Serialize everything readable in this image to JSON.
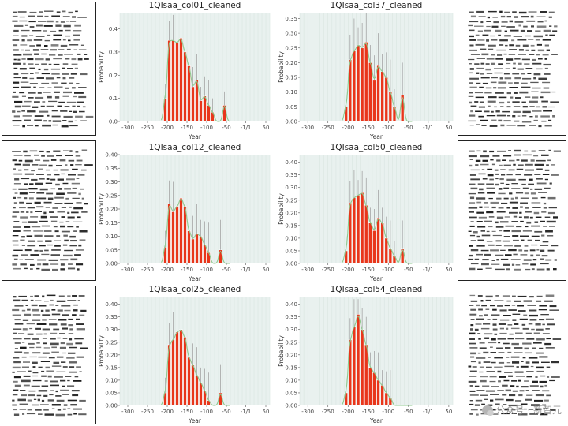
{
  "watermark": {
    "text": "公众号 · 新智元",
    "icon": "wechat-icon"
  },
  "colors": {
    "bar": "#e8361b",
    "bar_edge": "#ffffff",
    "kde": "#8fc98f",
    "plot_bg": "#e9f1ef",
    "errbar": "#9a9a9a"
  },
  "thumbnails": [
    {
      "name": "manuscript-col01"
    },
    {
      "name": "manuscript-col12"
    },
    {
      "name": "manuscript-col25"
    },
    {
      "name": "manuscript-col37"
    },
    {
      "name": "manuscript-col50"
    },
    {
      "name": "manuscript-col54"
    }
  ],
  "chart_data": [
    {
      "type": "bar",
      "title": "1QIsaa_col01_cleaned",
      "xlabel": "Year",
      "ylabel": "Probability",
      "xlim": [
        -320,
        60
      ],
      "ylim": [
        0,
        0.47
      ],
      "yticks": [
        0.0,
        0.1,
        0.2,
        0.3,
        0.4
      ],
      "xticks": [
        -300,
        -250,
        -200,
        -150,
        -100,
        -50,
        -1,
        50
      ],
      "xticklabels": [
        "-300",
        "-250",
        "-200",
        "-150",
        "-100",
        "-50",
        "-1/1",
        "50"
      ],
      "x": [
        -205,
        -195,
        -185,
        -175,
        -165,
        -155,
        -145,
        -135,
        -125,
        -115,
        -105,
        -95,
        -85,
        -75,
        -65,
        -55
      ],
      "values": [
        0.1,
        0.35,
        0.35,
        0.34,
        0.36,
        0.3,
        0.24,
        0.15,
        0.18,
        0.09,
        0.11,
        0.07,
        0.04,
        0,
        0,
        0.07
      ]
    },
    {
      "type": "bar",
      "title": "1QIsaa_col12_cleaned",
      "xlabel": "Year",
      "ylabel": "Probability",
      "xlim": [
        -320,
        60
      ],
      "ylim": [
        0,
        0.4
      ],
      "yticks": [
        0.0,
        0.05,
        0.1,
        0.15,
        0.2,
        0.25,
        0.3,
        0.35,
        0.4
      ],
      "xticks": [
        -300,
        -250,
        -200,
        -150,
        -100,
        -50,
        -1,
        50
      ],
      "xticklabels": [
        "-300",
        "-250",
        "-200",
        "-150",
        "-100",
        "-50",
        "-1/1",
        "50"
      ],
      "x": [
        -205,
        -195,
        -185,
        -175,
        -165,
        -155,
        -145,
        -135,
        -125,
        -115,
        -105,
        -95,
        -85,
        -75,
        -65,
        -55
      ],
      "values": [
        0.06,
        0.22,
        0.19,
        0.21,
        0.24,
        0.21,
        0.12,
        0.09,
        0.11,
        0.1,
        0.07,
        0.04,
        0,
        0,
        0.05,
        0
      ]
    },
    {
      "type": "bar",
      "title": "1QIsaa_col25_cleaned",
      "xlabel": "Year",
      "ylabel": "Probability",
      "xlim": [
        -320,
        60
      ],
      "ylim": [
        0,
        0.43
      ],
      "yticks": [
        0.0,
        0.05,
        0.1,
        0.15,
        0.2,
        0.25,
        0.3,
        0.35,
        0.4
      ],
      "xticks": [
        -300,
        -250,
        -200,
        -150,
        -100,
        -50,
        -1,
        50
      ],
      "xticklabels": [
        "-300",
        "-250",
        "-200",
        "-150",
        "-100",
        "-50",
        "-1/1",
        "50"
      ],
      "x": [
        -205,
        -195,
        -185,
        -175,
        -165,
        -155,
        -145,
        -135,
        -125,
        -115,
        -105,
        -95,
        -85,
        -75,
        -65,
        -55
      ],
      "values": [
        0.05,
        0.24,
        0.26,
        0.29,
        0.3,
        0.27,
        0.19,
        0.16,
        0.12,
        0.09,
        0.06,
        0.02,
        0,
        0,
        0.05,
        0
      ]
    },
    {
      "type": "bar",
      "title": "1QIsaa_col37_cleaned",
      "xlabel": "Year",
      "ylabel": "Probability",
      "xlim": [
        -320,
        60
      ],
      "ylim": [
        0,
        0.37
      ],
      "yticks": [
        0.0,
        0.05,
        0.1,
        0.15,
        0.2,
        0.25,
        0.3,
        0.35
      ],
      "xticks": [
        -300,
        -250,
        -200,
        -150,
        -100,
        -50,
        -1,
        50
      ],
      "xticklabels": [
        "-300",
        "-250",
        "-200",
        "-150",
        "-100",
        "-50",
        "-1/1",
        "50"
      ],
      "x": [
        -205,
        -195,
        -185,
        -175,
        -165,
        -155,
        -145,
        -135,
        -125,
        -115,
        -105,
        -95,
        -85,
        -75,
        -65,
        -55
      ],
      "values": [
        0.05,
        0.21,
        0.24,
        0.26,
        0.25,
        0.27,
        0.2,
        0.14,
        0.19,
        0.17,
        0.15,
        0.1,
        0.05,
        0,
        0.09,
        0
      ]
    },
    {
      "type": "bar",
      "title": "1QIsaa_col50_cleaned",
      "xlabel": "Year",
      "ylabel": "Probability",
      "xlim": [
        -320,
        60
      ],
      "ylim": [
        0,
        0.43
      ],
      "yticks": [
        0.0,
        0.05,
        0.1,
        0.15,
        0.2,
        0.25,
        0.3,
        0.35,
        0.4
      ],
      "xticks": [
        -300,
        -250,
        -200,
        -150,
        -100,
        -50,
        -1,
        50
      ],
      "xticklabels": [
        "-300",
        "-250",
        "-200",
        "-150",
        "-100",
        "-50",
        "-1/1",
        "50"
      ],
      "x": [
        -205,
        -195,
        -185,
        -175,
        -165,
        -155,
        -145,
        -135,
        -125,
        -115,
        -105,
        -95,
        -85,
        -75,
        -65,
        -55
      ],
      "values": [
        0.05,
        0.24,
        0.26,
        0.27,
        0.28,
        0.23,
        0.16,
        0.13,
        0.18,
        0.16,
        0.1,
        0.06,
        0.03,
        0,
        0.06,
        0
      ]
    },
    {
      "type": "bar",
      "title": "1QIsaa_col54_cleaned",
      "xlabel": "Year",
      "ylabel": "Probability",
      "xlim": [
        -320,
        60
      ],
      "ylim": [
        0,
        0.43
      ],
      "yticks": [
        0.0,
        0.05,
        0.1,
        0.15,
        0.2,
        0.25,
        0.3,
        0.35,
        0.4
      ],
      "xticks": [
        -300,
        -250,
        -200,
        -150,
        -100,
        -50,
        -1,
        50
      ],
      "xticklabels": [
        "-300",
        "-250",
        "-200",
        "-150",
        "-100",
        "-50",
        "-1/1",
        "50"
      ],
      "x": [
        -205,
        -195,
        -185,
        -175,
        -165,
        -155,
        -145,
        -135,
        -125,
        -115,
        -105,
        -95,
        -85,
        -75,
        -65,
        -55
      ],
      "values": [
        0.05,
        0.26,
        0.31,
        0.36,
        0.3,
        0.24,
        0.15,
        0.13,
        0.1,
        0.08,
        0.05,
        0.03,
        0,
        0,
        0,
        0
      ]
    }
  ]
}
